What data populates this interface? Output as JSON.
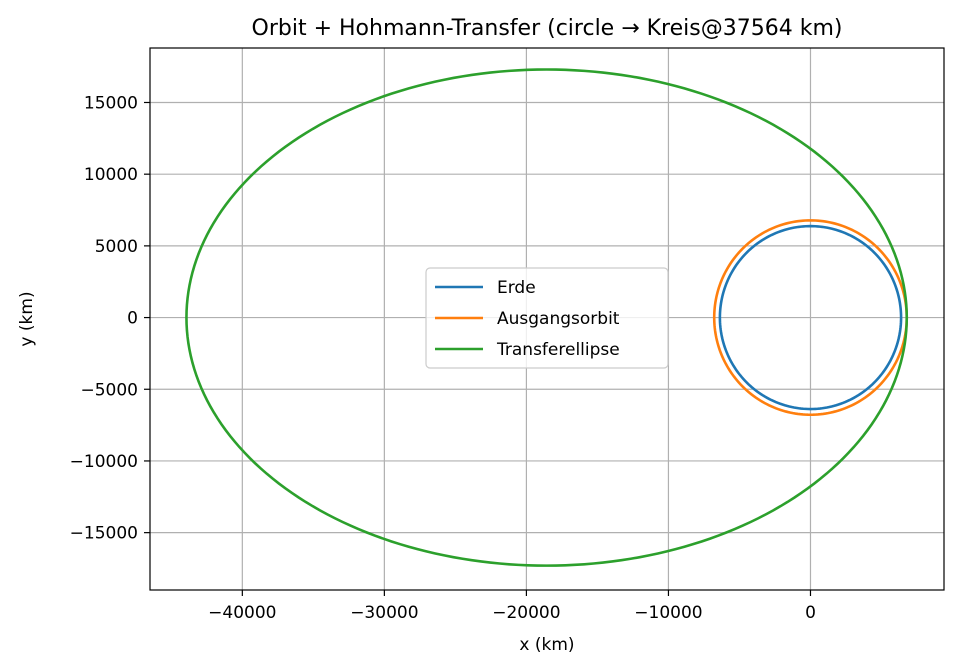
{
  "chart_data": {
    "type": "line",
    "title": "Orbit + Hohmann-Transfer (circle → Kreis@37564 km)",
    "xlabel": "x (km)",
    "ylabel": "y (km)",
    "xlim": [
      -46500,
      9400
    ],
    "ylim": [
      -19000,
      18800
    ],
    "xticks": [
      -40000,
      -30000,
      -20000,
      -10000,
      0
    ],
    "yticks": [
      -15000,
      -10000,
      -5000,
      0,
      5000,
      10000,
      15000
    ],
    "xtick_labels": [
      "−40000",
      "−30000",
      "−20000",
      "−10000",
      "0"
    ],
    "ytick_labels": [
      "−15000",
      "−10000",
      "−5000",
      "0",
      "5000",
      "10000",
      "15000"
    ],
    "grid": true,
    "legend_position": "center",
    "series": [
      {
        "name": "Erde",
        "color": "#1f77b4",
        "shape": "ellipse",
        "center": [
          0,
          0
        ],
        "semi_axis_x": 6378,
        "semi_axis_y": 6378
      },
      {
        "name": "Ausgangsorbit",
        "color": "#ff7f0e",
        "shape": "ellipse",
        "center": [
          0,
          0
        ],
        "semi_axis_x": 6778,
        "semi_axis_y": 6778
      },
      {
        "name": "Transferellipse",
        "color": "#2ca02c",
        "shape": "ellipse",
        "center": [
          -18578,
          0
        ],
        "semi_axis_x": 25356,
        "semi_axis_y": 17300
      }
    ]
  }
}
